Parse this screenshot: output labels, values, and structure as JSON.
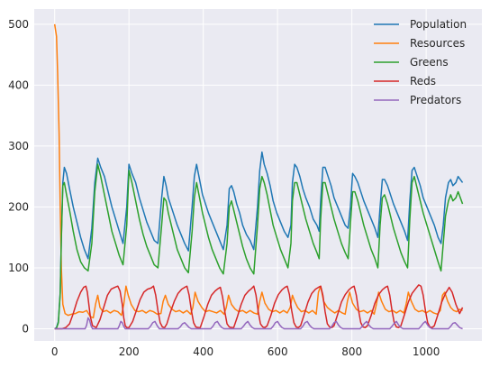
{
  "chart_data": {
    "type": "line",
    "title": "",
    "xlabel": "",
    "ylabel": "",
    "xlim": [
      -55,
      1150
    ],
    "ylim": [
      -20,
      525
    ],
    "grid": true,
    "background": "#eaeaf2",
    "legend_placement": "top-right",
    "x_ticks": [
      0,
      200,
      400,
      600,
      800,
      1000
    ],
    "x_tick_labels": [
      "0",
      "200",
      "400",
      "600",
      "800",
      "1000"
    ],
    "y_ticks": [
      0,
      100,
      200,
      300,
      400,
      500
    ],
    "y_tick_labels": [
      "0",
      "100",
      "200",
      "300",
      "400",
      "500"
    ],
    "series": [
      {
        "name": "Population",
        "color": "#1f77b4",
        "x": [
          0,
          5,
          10,
          15,
          18,
          22,
          26,
          32,
          40,
          50,
          60,
          70,
          80,
          90,
          100,
          108,
          116,
          124,
          134,
          144,
          154,
          164,
          174,
          184,
          194,
          200,
          208,
          218,
          228,
          238,
          248,
          258,
          268,
          278,
          288,
          294,
          300,
          306,
          314,
          322,
          330,
          340,
          350,
          360,
          370,
          376,
          382,
          390,
          398,
          406,
          414,
          424,
          434,
          444,
          454,
          464,
          470,
          476,
          482,
          490,
          498,
          506,
          516,
          526,
          536,
          546,
          552,
          558,
          564,
          572,
          580,
          588,
          598,
          608,
          618,
          628,
          636,
          640,
          646,
          652,
          660,
          668,
          676,
          686,
          696,
          706,
          712,
          716,
          722,
          728,
          736,
          744,
          752,
          762,
          772,
          782,
          790,
          796,
          802,
          808,
          816,
          824,
          832,
          842,
          852,
          862,
          870,
          876,
          882,
          888,
          896,
          904,
          912,
          922,
          932,
          942,
          950,
          956,
          962,
          968,
          976,
          984,
          992,
          1002,
          1012,
          1022,
          1032,
          1040,
          1046,
          1052,
          1060,
          1066,
          1072,
          1080,
          1086,
          1092,
          1098
        ],
        "y": [
          0,
          2,
          12,
          60,
          150,
          240,
          265,
          255,
          230,
          200,
          175,
          150,
          130,
          115,
          165,
          240,
          280,
          265,
          250,
          225,
          200,
          180,
          160,
          140,
          200,
          270,
          255,
          240,
          215,
          195,
          175,
          160,
          145,
          140,
          215,
          250,
          235,
          215,
          200,
          185,
          170,
          155,
          140,
          128,
          200,
          250,
          270,
          245,
          220,
          205,
          190,
          175,
          160,
          145,
          130,
          170,
          230,
          235,
          225,
          205,
          190,
          170,
          155,
          145,
          130,
          200,
          260,
          290,
          270,
          255,
          235,
          210,
          190,
          175,
          160,
          150,
          170,
          240,
          270,
          265,
          250,
          230,
          215,
          200,
          180,
          170,
          160,
          210,
          265,
          265,
          250,
          235,
          215,
          200,
          185,
          170,
          165,
          200,
          255,
          250,
          240,
          225,
          210,
          195,
          180,
          165,
          150,
          200,
          245,
          245,
          235,
          220,
          205,
          190,
          175,
          160,
          145,
          210,
          260,
          265,
          250,
          235,
          215,
          200,
          185,
          170,
          150,
          140,
          170,
          215,
          240,
          245,
          235,
          240,
          250,
          245,
          240
        ]
      },
      {
        "name": "Resources",
        "color": "#ff7f0e",
        "x": [
          0,
          5,
          8,
          12,
          15,
          18,
          22,
          28,
          36,
          46,
          56,
          66,
          76,
          86,
          96,
          104,
          110,
          116,
          122,
          130,
          140,
          150,
          160,
          170,
          180,
          186,
          192,
          198,
          206,
          216,
          226,
          236,
          246,
          256,
          266,
          276,
          286,
          292,
          298,
          306,
          316,
          326,
          336,
          346,
          356,
          366,
          372,
          378,
          386,
          396,
          406,
          416,
          426,
          436,
          446,
          456,
          462,
          468,
          476,
          486,
          496,
          506,
          516,
          526,
          536,
          546,
          552,
          558,
          566,
          576,
          586,
          596,
          606,
          616,
          626,
          634,
          640,
          646,
          654,
          664,
          674,
          684,
          694,
          704,
          710,
          716,
          724,
          734,
          744,
          754,
          764,
          774,
          782,
          788,
          794,
          802,
          812,
          822,
          832,
          842,
          852,
          860,
          866,
          872,
          880,
          890,
          900,
          910,
          920,
          930,
          940,
          946,
          952,
          960,
          970,
          980,
          990,
          1000,
          1010,
          1020,
          1030,
          1038,
          1044,
          1050,
          1058,
          1066,
          1074,
          1082,
          1090,
          1098
        ],
        "y": [
          500,
          480,
          420,
          320,
          200,
          100,
          40,
          25,
          22,
          24,
          25,
          28,
          27,
          30,
          20,
          18,
          40,
          55,
          35,
          28,
          30,
          26,
          30,
          28,
          22,
          40,
          70,
          55,
          40,
          30,
          28,
          30,
          26,
          30,
          28,
          24,
          25,
          45,
          55,
          40,
          32,
          28,
          30,
          26,
          30,
          24,
          35,
          60,
          45,
          35,
          28,
          30,
          28,
          26,
          30,
          24,
          35,
          55,
          40,
          32,
          28,
          30,
          26,
          30,
          26,
          24,
          45,
          60,
          42,
          32,
          28,
          30,
          26,
          30,
          26,
          35,
          55,
          45,
          35,
          28,
          30,
          26,
          30,
          24,
          60,
          70,
          45,
          35,
          30,
          26,
          30,
          26,
          24,
          45,
          60,
          42,
          32,
          28,
          30,
          26,
          30,
          24,
          40,
          60,
          45,
          32,
          28,
          30,
          26,
          30,
          26,
          40,
          60,
          45,
          32,
          28,
          30,
          26,
          30,
          26,
          24,
          30,
          55,
          60,
          45,
          35,
          30,
          28,
          32,
          30
        ]
      },
      {
        "name": "Greens",
        "color": "#2ca02c",
        "x": [
          0,
          5,
          10,
          15,
          18,
          22,
          26,
          32,
          40,
          50,
          60,
          70,
          80,
          90,
          100,
          108,
          116,
          124,
          134,
          144,
          154,
          164,
          174,
          184,
          194,
          200,
          208,
          218,
          228,
          238,
          248,
          258,
          268,
          278,
          288,
          294,
          300,
          306,
          314,
          322,
          330,
          340,
          350,
          360,
          370,
          376,
          382,
          390,
          398,
          406,
          414,
          424,
          434,
          444,
          454,
          464,
          470,
          476,
          482,
          490,
          498,
          506,
          516,
          526,
          536,
          546,
          552,
          558,
          564,
          572,
          580,
          588,
          598,
          608,
          618,
          628,
          636,
          640,
          646,
          652,
          660,
          668,
          676,
          686,
          696,
          706,
          712,
          716,
          722,
          728,
          736,
          744,
          752,
          762,
          772,
          782,
          790,
          796,
          802,
          808,
          816,
          824,
          832,
          842,
          852,
          862,
          870,
          876,
          882,
          888,
          896,
          904,
          912,
          922,
          932,
          942,
          950,
          956,
          962,
          968,
          976,
          984,
          992,
          1002,
          1012,
          1022,
          1032,
          1040,
          1046,
          1052,
          1060,
          1066,
          1072,
          1080,
          1086,
          1092,
          1098
        ],
        "y": [
          0,
          1,
          10,
          58,
          148,
          235,
          240,
          220,
          195,
          160,
          130,
          110,
          100,
          95,
          140,
          225,
          270,
          250,
          220,
          190,
          160,
          140,
          120,
          105,
          170,
          260,
          240,
          210,
          180,
          155,
          135,
          120,
          105,
          100,
          170,
          215,
          210,
          190,
          170,
          150,
          130,
          115,
          100,
          92,
          160,
          215,
          240,
          215,
          190,
          170,
          150,
          130,
          115,
          100,
          90,
          140,
          200,
          210,
          195,
          175,
          155,
          135,
          115,
          100,
          90,
          170,
          230,
          250,
          240,
          220,
          195,
          170,
          150,
          130,
          115,
          100,
          140,
          210,
          240,
          240,
          220,
          200,
          180,
          160,
          140,
          125,
          115,
          180,
          240,
          240,
          220,
          200,
          180,
          160,
          140,
          125,
          115,
          170,
          225,
          225,
          210,
          190,
          170,
          150,
          130,
          115,
          100,
          170,
          215,
          220,
          205,
          185,
          165,
          145,
          125,
          110,
          100,
          180,
          240,
          250,
          230,
          210,
          190,
          170,
          150,
          130,
          110,
          95,
          140,
          185,
          210,
          220,
          210,
          215,
          225,
          215,
          205
        ]
      },
      {
        "name": "Reds",
        "color": "#d62728",
        "x": [
          0,
          20,
          30,
          40,
          50,
          60,
          70,
          78,
          84,
          88,
          92,
          96,
          102,
          112,
          122,
          132,
          142,
          152,
          162,
          170,
          176,
          182,
          186,
          190,
          194,
          200,
          210,
          220,
          230,
          240,
          250,
          260,
          266,
          272,
          278,
          284,
          290,
          296,
          302,
          312,
          322,
          332,
          342,
          350,
          356,
          362,
          368,
          374,
          380,
          386,
          392,
          402,
          412,
          422,
          432,
          440,
          446,
          452,
          458,
          464,
          470,
          476,
          482,
          492,
          502,
          512,
          522,
          530,
          536,
          542,
          548,
          554,
          560,
          566,
          572,
          582,
          592,
          602,
          612,
          620,
          626,
          632,
          638,
          644,
          650,
          656,
          662,
          672,
          682,
          692,
          702,
          710,
          716,
          722,
          728,
          734,
          740,
          746,
          752,
          762,
          772,
          782,
          792,
          800,
          806,
          812,
          818,
          824,
          830,
          836,
          842,
          852,
          862,
          872,
          882,
          890,
          896,
          902,
          908,
          914,
          920,
          926,
          932,
          942,
          952,
          962,
          972,
          980,
          986,
          992,
          998,
          1004,
          1010,
          1016,
          1022,
          1032,
          1042,
          1052,
          1062,
          1070,
          1080,
          1090,
          1098
        ],
        "y": [
          0,
          0,
          2,
          8,
          25,
          45,
          60,
          68,
          70,
          60,
          40,
          20,
          5,
          2,
          15,
          35,
          55,
          65,
          68,
          70,
          62,
          40,
          18,
          5,
          2,
          2,
          12,
          30,
          48,
          60,
          65,
          67,
          70,
          55,
          30,
          10,
          3,
          2,
          8,
          28,
          45,
          58,
          65,
          68,
          70,
          55,
          30,
          10,
          3,
          2,
          2,
          20,
          40,
          55,
          62,
          66,
          68,
          52,
          28,
          8,
          3,
          2,
          2,
          20,
          40,
          55,
          62,
          66,
          70,
          55,
          28,
          8,
          3,
          2,
          5,
          22,
          42,
          56,
          64,
          68,
          70,
          56,
          30,
          10,
          3,
          2,
          5,
          24,
          44,
          58,
          65,
          68,
          70,
          55,
          28,
          8,
          3,
          2,
          5,
          24,
          44,
          56,
          64,
          68,
          70,
          55,
          30,
          10,
          3,
          2,
          5,
          22,
          42,
          56,
          64,
          68,
          70,
          55,
          30,
          10,
          3,
          2,
          5,
          24,
          44,
          58,
          66,
          72,
          70,
          55,
          30,
          10,
          3,
          2,
          5,
          24,
          44,
          58,
          68,
          60,
          40,
          25,
          35
        ]
      },
      {
        "name": "Predators",
        "color": "#9467bd",
        "x": [
          0,
          82,
          86,
          90,
          94,
          98,
          102,
          170,
          174,
          178,
          182,
          186,
          190,
          252,
          258,
          264,
          270,
          276,
          282,
          332,
          338,
          344,
          350,
          356,
          362,
          368,
          420,
          426,
          432,
          438,
          444,
          450,
          456,
          502,
          508,
          514,
          520,
          526,
          532,
          538,
          582,
          588,
          594,
          600,
          606,
          612,
          618,
          662,
          668,
          674,
          680,
          686,
          692,
          698,
          740,
          746,
          752,
          758,
          764,
          770,
          776,
          822,
          828,
          834,
          840,
          846,
          852,
          858,
          902,
          908,
          914,
          920,
          926,
          932,
          938,
          980,
          986,
          992,
          998,
          1004,
          1010,
          1016,
          1060,
          1066,
          1072,
          1078,
          1084,
          1090,
          1098
        ],
        "y": [
          0,
          0,
          6,
          18,
          14,
          5,
          0,
          0,
          5,
          12,
          10,
          4,
          0,
          0,
          4,
          10,
          12,
          5,
          0,
          0,
          3,
          8,
          10,
          6,
          2,
          0,
          0,
          4,
          10,
          12,
          6,
          2,
          0,
          0,
          4,
          9,
          12,
          6,
          2,
          0,
          0,
          4,
          10,
          12,
          6,
          2,
          0,
          0,
          4,
          10,
          12,
          6,
          2,
          0,
          0,
          4,
          10,
          12,
          6,
          2,
          0,
          0,
          4,
          9,
          12,
          6,
          2,
          0,
          0,
          4,
          9,
          12,
          6,
          2,
          0,
          0,
          4,
          9,
          12,
          6,
          2,
          0,
          0,
          4,
          9,
          10,
          6,
          2,
          0
        ]
      }
    ]
  }
}
